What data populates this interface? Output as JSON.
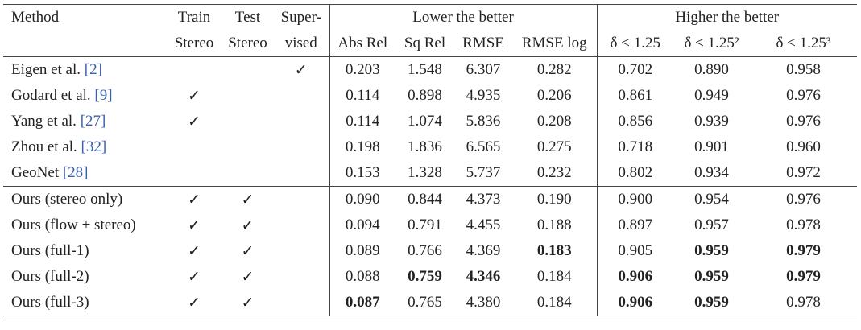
{
  "table": {
    "header": {
      "method": "Method",
      "train": [
        "Train",
        "Stereo"
      ],
      "test": [
        "Test",
        "Stereo"
      ],
      "supervised": [
        "Super-",
        "vised"
      ],
      "groups": [
        "Lower the better",
        "Higher the better"
      ],
      "columns": [
        "Abs Rel",
        "Sq Rel",
        "RMSE",
        "RMSE log",
        "δ < 1.25",
        "δ < 1.25²",
        "δ < 1.25³"
      ]
    },
    "sections": [
      [
        {
          "method": "Eigen et al.",
          "cite": "[2]",
          "train": null,
          "test": null,
          "supervised": "✓",
          "values": [
            "0.203",
            "1.548",
            "6.307",
            "0.282",
            "0.702",
            "0.890",
            "0.958"
          ],
          "bold": [
            false,
            false,
            false,
            false,
            false,
            false,
            false
          ]
        },
        {
          "method": "Godard et al.",
          "cite": "[9]",
          "train": "✓",
          "test": null,
          "supervised": null,
          "values": [
            "0.114",
            "0.898",
            "4.935",
            "0.206",
            "0.861",
            "0.949",
            "0.976"
          ],
          "bold": [
            false,
            false,
            false,
            false,
            false,
            false,
            false
          ]
        },
        {
          "method": "Yang et al.",
          "cite": "[27]",
          "train": "✓",
          "test": null,
          "supervised": null,
          "values": [
            "0.114",
            "1.074",
            "5.836",
            "0.208",
            "0.856",
            "0.939",
            "0.976"
          ],
          "bold": [
            false,
            false,
            false,
            false,
            false,
            false,
            false
          ]
        },
        {
          "method": "Zhou et al.",
          "cite": "[32]",
          "train": null,
          "test": null,
          "supervised": null,
          "values": [
            "0.198",
            "1.836",
            "6.565",
            "0.275",
            "0.718",
            "0.901",
            "0.960"
          ],
          "bold": [
            false,
            false,
            false,
            false,
            false,
            false,
            false
          ]
        },
        {
          "method": "GeoNet",
          "cite": "[28]",
          "train": null,
          "test": null,
          "supervised": null,
          "values": [
            "0.153",
            "1.328",
            "5.737",
            "0.232",
            "0.802",
            "0.934",
            "0.972"
          ],
          "bold": [
            false,
            false,
            false,
            false,
            false,
            false,
            false
          ]
        }
      ],
      [
        {
          "method": "Ours (stereo only)",
          "cite": null,
          "train": "✓",
          "test": "✓",
          "supervised": null,
          "values": [
            "0.090",
            "0.844",
            "4.373",
            "0.190",
            "0.900",
            "0.954",
            "0.976"
          ],
          "bold": [
            false,
            false,
            false,
            false,
            false,
            false,
            false
          ]
        },
        {
          "method": "Ours (flow + stereo)",
          "cite": null,
          "train": "✓",
          "test": "✓",
          "supervised": null,
          "values": [
            "0.094",
            "0.791",
            "4.455",
            "0.188",
            "0.897",
            "0.957",
            "0.978"
          ],
          "bold": [
            false,
            false,
            false,
            false,
            false,
            false,
            false
          ]
        },
        {
          "method": "Ours (full-1)",
          "cite": null,
          "train": "✓",
          "test": "✓",
          "supervised": null,
          "values": [
            "0.089",
            "0.766",
            "4.369",
            "0.183",
            "0.905",
            "0.959",
            "0.979"
          ],
          "bold": [
            false,
            false,
            false,
            true,
            false,
            true,
            true
          ]
        },
        {
          "method": "Ours (full-2)",
          "cite": null,
          "train": "✓",
          "test": "✓",
          "supervised": null,
          "values": [
            "0.088",
            "0.759",
            "4.346",
            "0.184",
            "0.906",
            "0.959",
            "0.979"
          ],
          "bold": [
            false,
            true,
            true,
            false,
            true,
            true,
            true
          ]
        },
        {
          "method": "Ours (full-3)",
          "cite": null,
          "train": "✓",
          "test": "✓",
          "supervised": null,
          "values": [
            "0.087",
            "0.765",
            "4.380",
            "0.184",
            "0.906",
            "0.959",
            "0.978"
          ],
          "bold": [
            true,
            false,
            false,
            false,
            true,
            true,
            false
          ]
        }
      ]
    ]
  }
}
